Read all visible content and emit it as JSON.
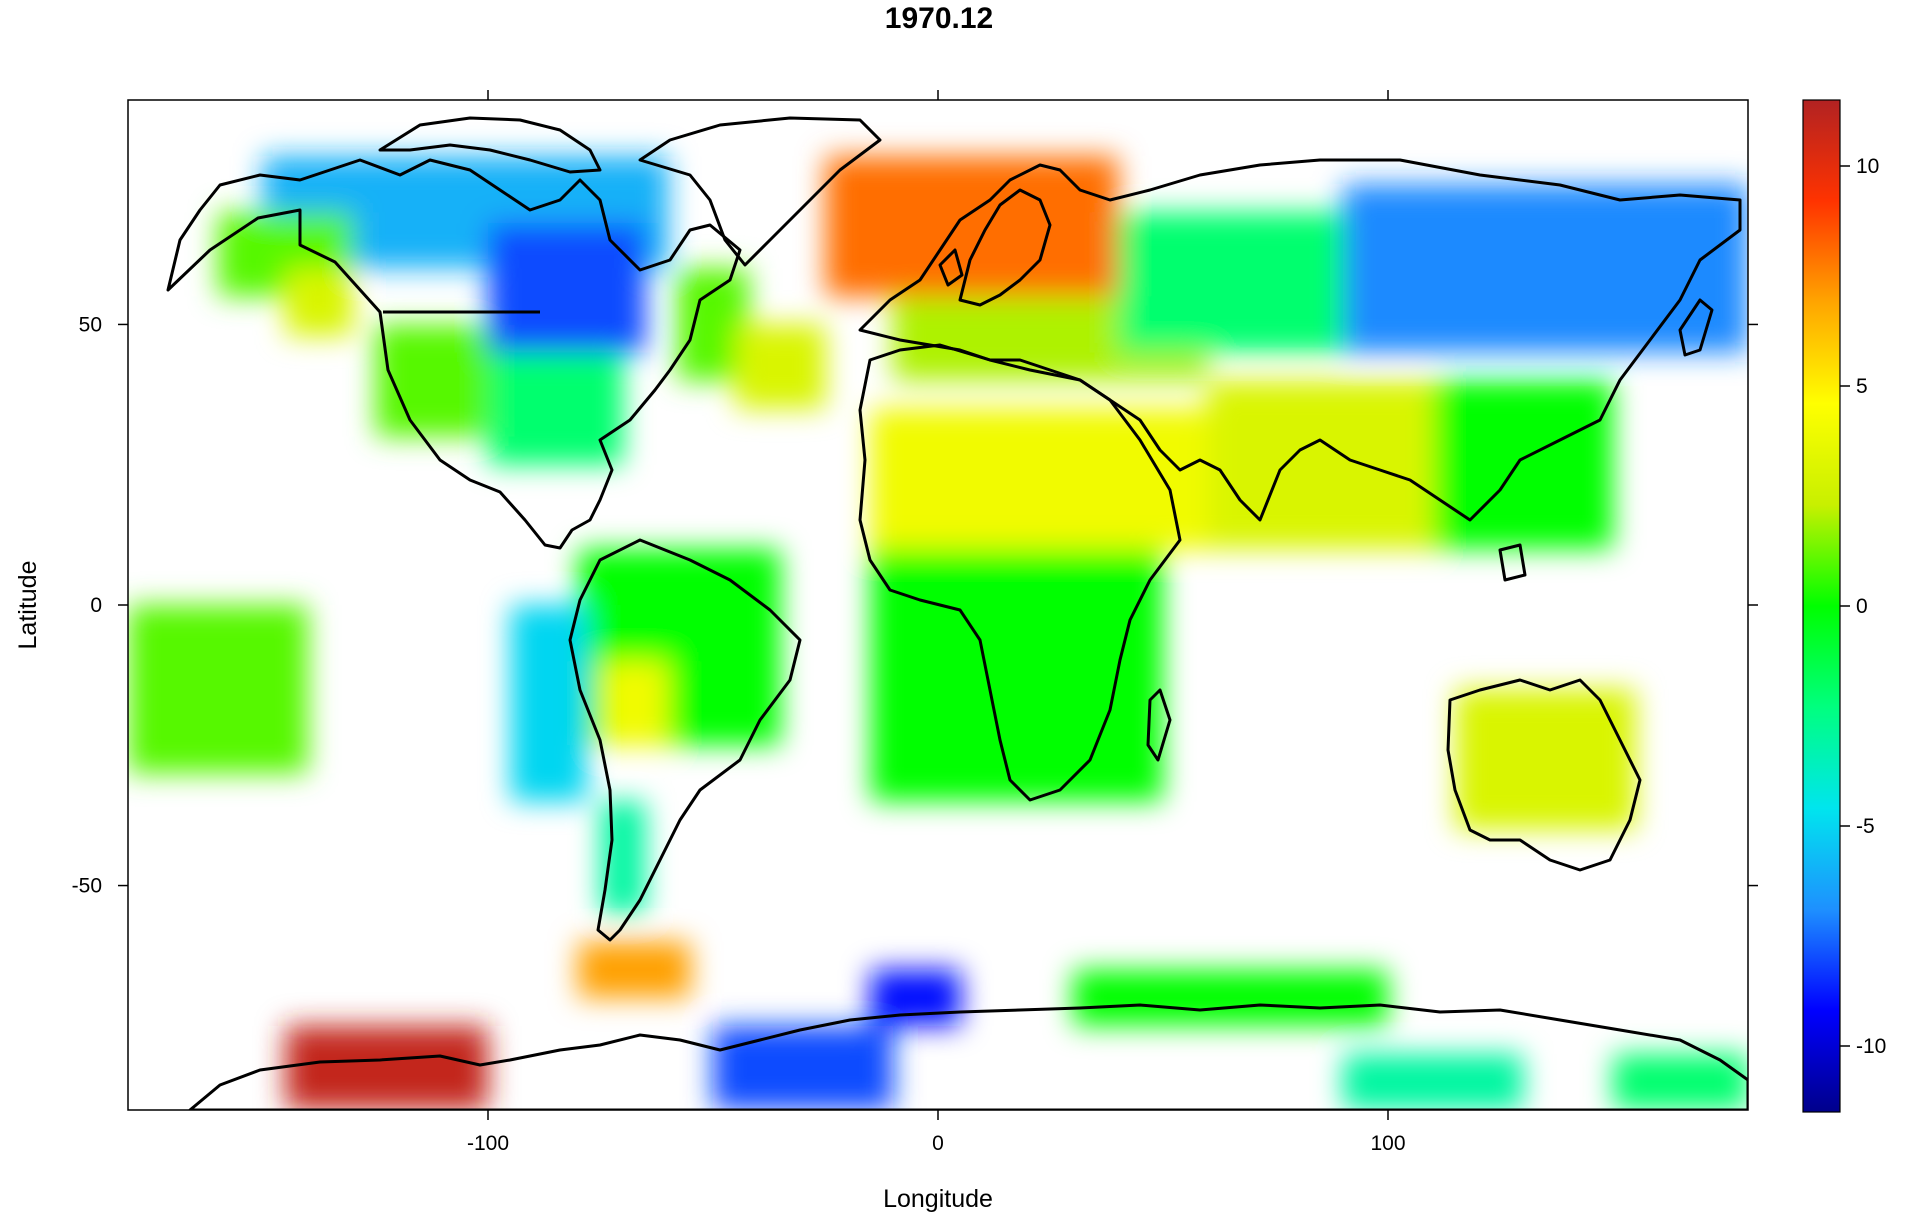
{
  "title": "1970.12",
  "x_axis": {
    "label": "Longitude",
    "range": [
      -180,
      180
    ],
    "ticks": [
      -100,
      0,
      100
    ]
  },
  "y_axis": {
    "label": "Latitude",
    "range": [
      -90,
      90
    ],
    "ticks": [
      -50,
      0,
      50
    ]
  },
  "colorbar": {
    "range": [
      -11.5,
      11.5
    ],
    "ticks": [
      -10,
      -5,
      0,
      5,
      10
    ],
    "colors": [
      "#00008b",
      "#0000ff",
      "#1e90ff",
      "#00e5ee",
      "#00ff7f",
      "#00ff00",
      "#c8f000",
      "#ffff00",
      "#ffa500",
      "#ff3300",
      "#b22222"
    ]
  },
  "chart_data": {
    "type": "heatmap",
    "title": "1970.12",
    "xlabel": "Longitude",
    "ylabel": "Latitude",
    "xlim": [
      -180,
      180
    ],
    "ylim": [
      -90,
      90
    ],
    "value_range": [
      -11.5,
      11.5
    ],
    "regions": [
      {
        "lon": [
          -150,
          -60
        ],
        "lat": [
          60,
          80
        ],
        "value": -6
      },
      {
        "lon": [
          -100,
          -65
        ],
        "lat": [
          45,
          68
        ],
        "value": -8
      },
      {
        "lon": [
          -160,
          -130
        ],
        "lat": [
          55,
          70
        ],
        "value": 1
      },
      {
        "lon": [
          -145,
          -130
        ],
        "lat": [
          48,
          60
        ],
        "value": 3
      },
      {
        "lon": [
          -125,
          -100
        ],
        "lat": [
          30,
          50
        ],
        "value": 1
      },
      {
        "lon": [
          -100,
          -70
        ],
        "lat": [
          25,
          45
        ],
        "value": -2
      },
      {
        "lon": [
          -58,
          -42
        ],
        "lat": [
          40,
          60
        ],
        "value": 1
      },
      {
        "lon": [
          -45,
          -25
        ],
        "lat": [
          35,
          50
        ],
        "value": 3
      },
      {
        "lon": [
          -25,
          40
        ],
        "lat": [
          55,
          80
        ],
        "value": 8
      },
      {
        "lon": [
          -10,
          60
        ],
        "lat": [
          40,
          55
        ],
        "value": 2
      },
      {
        "lon": [
          40,
          90
        ],
        "lat": [
          45,
          70
        ],
        "value": -2
      },
      {
        "lon": [
          90,
          180
        ],
        "lat": [
          45,
          75
        ],
        "value": -7
      },
      {
        "lon": [
          -15,
          60
        ],
        "lat": [
          10,
          35
        ],
        "value": 4
      },
      {
        "lon": [
          60,
          110
        ],
        "lat": [
          10,
          40
        ],
        "value": 3
      },
      {
        "lon": [
          110,
          150
        ],
        "lat": [
          10,
          40
        ],
        "value": 0
      },
      {
        "lon": [
          -15,
          50
        ],
        "lat": [
          -35,
          10
        ],
        "value": 0
      },
      {
        "lon": [
          -80,
          -35
        ],
        "lat": [
          -25,
          10
        ],
        "value": 0
      },
      {
        "lon": [
          -75,
          -60
        ],
        "lat": [
          -25,
          -10
        ],
        "value": 4
      },
      {
        "lon": [
          -95,
          -78
        ],
        "lat": [
          -35,
          0
        ],
        "value": -5
      },
      {
        "lon": [
          -75,
          -65
        ],
        "lat": [
          -55,
          -35
        ],
        "value": -3
      },
      {
        "lon": [
          -180,
          -140
        ],
        "lat": [
          -30,
          0
        ],
        "value": 1
      },
      {
        "lon": [
          115,
          155
        ],
        "lat": [
          -40,
          -15
        ],
        "value": 3
      },
      {
        "lon": [
          -80,
          -55
        ],
        "lat": [
          -70,
          -60
        ],
        "value": 7
      },
      {
        "lon": [
          -145,
          -100
        ],
        "lat": [
          -90,
          -75
        ],
        "value": 11
      },
      {
        "lon": [
          -50,
          -10
        ],
        "lat": [
          -90,
          -75
        ],
        "value": -8
      },
      {
        "lon": [
          -15,
          5
        ],
        "lat": [
          -75,
          -65
        ],
        "value": -9
      },
      {
        "lon": [
          30,
          100
        ],
        "lat": [
          -75,
          -65
        ],
        "value": 0
      },
      {
        "lon": [
          90,
          130
        ],
        "lat": [
          -90,
          -80
        ],
        "value": -3
      },
      {
        "lon": [
          150,
          180
        ],
        "lat": [
          -90,
          -80
        ],
        "value": -2
      }
    ]
  }
}
